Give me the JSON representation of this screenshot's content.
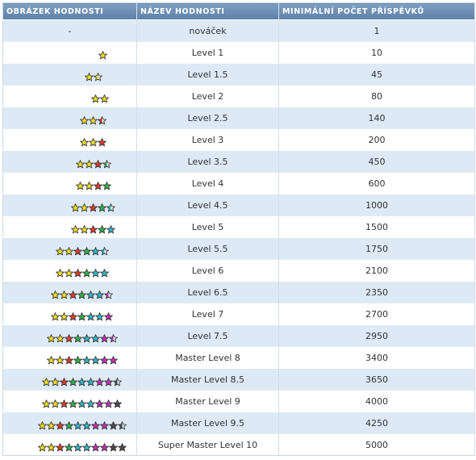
{
  "headers": {
    "image": "OBRÁZEK HODNOSTI",
    "name": "NÁZEV HODNOSTI",
    "posts": "MINIMÁLNÍ POČET PŘÍSPĚVKŮ"
  },
  "colors": {
    "y": "#f2e21a",
    "r": "#e43a2a",
    "g": "#2fb34a",
    "c": "#2fb8c8",
    "m": "#c52fb8",
    "k": "#4a4a4a"
  },
  "rows": [
    {
      "image": "-",
      "name": "nováček",
      "posts": "1",
      "stars": ""
    },
    {
      "image": "",
      "name": "Level 1",
      "posts": "10",
      "stars": "y"
    },
    {
      "image": "",
      "name": "Level 1.5",
      "posts": "45",
      "stars": "yY"
    },
    {
      "image": "",
      "name": "Level 2",
      "posts": "80",
      "stars": "yy"
    },
    {
      "image": "",
      "name": "Level 2.5",
      "posts": "140",
      "stars": "yyR"
    },
    {
      "image": "",
      "name": "Level 3",
      "posts": "200",
      "stars": "yyr"
    },
    {
      "image": "",
      "name": "Level 3.5",
      "posts": "450",
      "stars": "yyrG"
    },
    {
      "image": "",
      "name": "Level 4",
      "posts": "600",
      "stars": "yyrg"
    },
    {
      "image": "",
      "name": "Level 4.5",
      "posts": "1000",
      "stars": "yyrgC"
    },
    {
      "image": "",
      "name": "Level 5",
      "posts": "1500",
      "stars": "yyrgc"
    },
    {
      "image": "",
      "name": "Level 5.5",
      "posts": "1750",
      "stars": "yyrgcC"
    },
    {
      "image": "",
      "name": "Level 6",
      "posts": "2100",
      "stars": "yyrgcc"
    },
    {
      "image": "",
      "name": "Level 6.5",
      "posts": "2350",
      "stars": "yyrgccM"
    },
    {
      "image": "",
      "name": "Level 7",
      "posts": "2700",
      "stars": "yyrgccm"
    },
    {
      "image": "",
      "name": "Level 7.5",
      "posts": "2950",
      "stars": "yyrgccmM"
    },
    {
      "image": "",
      "name": "Master Level 8",
      "posts": "3400",
      "stars": "yyrgccmm"
    },
    {
      "image": "",
      "name": "Master Level 8.5",
      "posts": "3650",
      "stars": "yyrgccmmK"
    },
    {
      "image": "",
      "name": "Master Level 9",
      "posts": "4000",
      "stars": "yyrgccmmk"
    },
    {
      "image": "",
      "name": "Master Level 9.5",
      "posts": "4250",
      "stars": "yyrgccmmkK"
    },
    {
      "image": "",
      "name": "Super Master Level 10",
      "posts": "5000",
      "stars": "yyrgccmmkk"
    }
  ]
}
